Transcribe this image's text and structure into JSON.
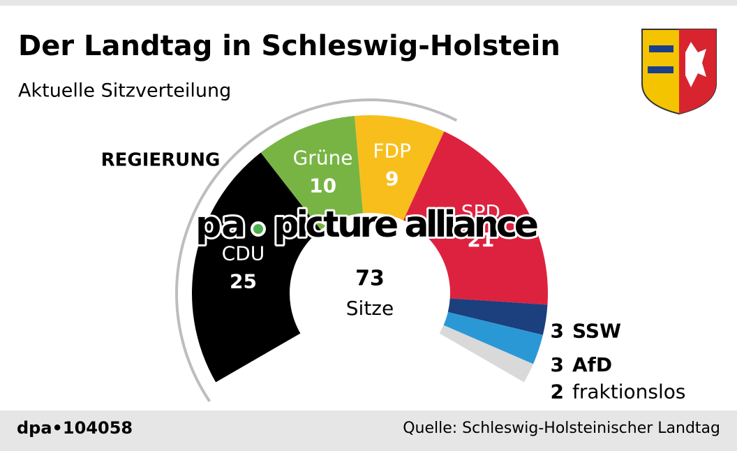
{
  "header": {
    "title": "Der Landtag in Schleswig-Holstein",
    "subtitle": "Aktuelle Sitzverteilung"
  },
  "chart_data": {
    "type": "donut",
    "categories": [
      "CDU",
      "Grüne",
      "FDP",
      "SPD",
      "SSW",
      "AfD",
      "fraktionslos"
    ],
    "values": [
      25,
      10,
      9,
      21,
      3,
      3,
      2
    ],
    "colors": [
      "#000000",
      "#78b443",
      "#f8bf1c",
      "#dd2240",
      "#1c3f7d",
      "#2b98d6",
      "#d9d9d9"
    ],
    "total": 73,
    "total_label": "Sitze",
    "group_label": "REGIERUNG",
    "watermark": [
      "pa",
      "picture alliance"
    ]
  },
  "footer": {
    "id": "dpa•104058",
    "source": "Quelle: Schleswig-Holsteinischer Landtag"
  }
}
